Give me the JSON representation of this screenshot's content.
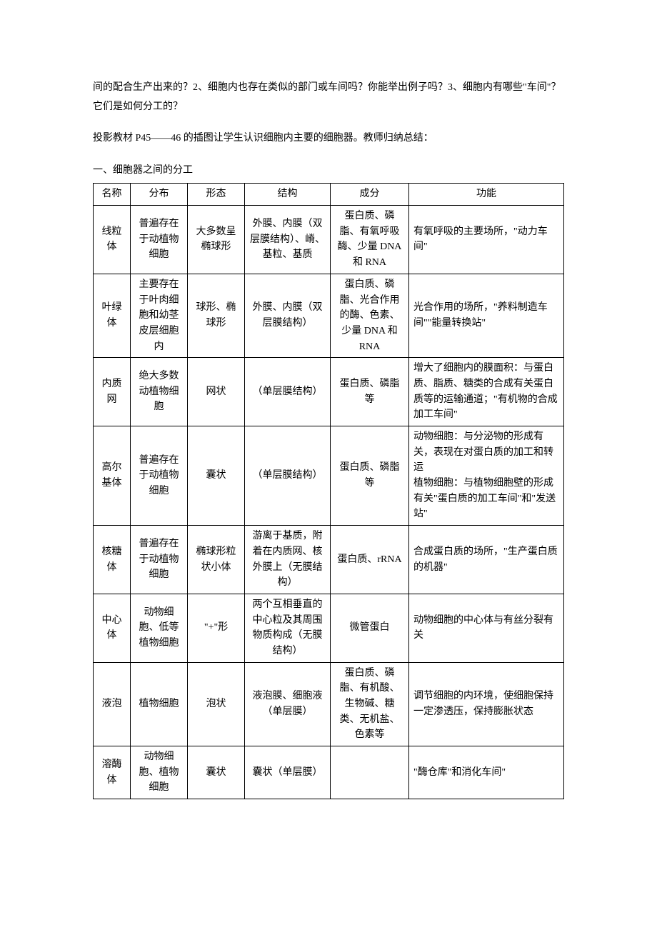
{
  "paragraph1": "间的配合生产出来的？2、细胞内也存在类似的部门或车间吗？你能举出例子吗？3、细胞内有哪些\"车间\"？它们是如何分工的？",
  "paragraph2": "投影教材 P45——46 的插图让学生认识细胞内主要的细胞器。教师归纳总结：",
  "section_title": "一、细胞器之间的分工",
  "table": {
    "headers": [
      "名称",
      "分布",
      "形态",
      "结构",
      "成分",
      "功能"
    ],
    "rows": [
      {
        "name": "线粒体",
        "dist": "普遍存在于动植物细胞",
        "shape": "大多数呈椭球形",
        "struct": "外膜、内膜（双层膜结构）、嵴、基粒、基质",
        "comp": "蛋白质、磷脂、有氧呼吸酶、少量 DNA 和 RNA",
        "func": "有氧呼吸的主要场所，\"动力车间\""
      },
      {
        "name": "叶绿体",
        "dist": "主要存在于叶肉细胞和幼茎皮层细胞内",
        "shape": "球形、椭球形",
        "struct": "外膜、内膜（双层膜结构）",
        "comp": "蛋白质、磷脂、光合作用的酶、色素、少量 DNA 和 RNA",
        "func": "光合作用的场所，\"养料制造车间\"\"能量转换站\""
      },
      {
        "name": "内质网",
        "dist": "绝大多数动植物细胞",
        "shape": "网状",
        "struct": "（单层膜结构）",
        "comp": "蛋白质、磷脂等",
        "func": "增大了细胞内的膜面积：与蛋白质、脂质、糖类的合成有关蛋白质等的运输通道；\"有机物的合成加工车间\""
      },
      {
        "name": "高尔基体",
        "dist": "普遍存在于动植物细胞",
        "shape": "囊状",
        "struct": "（单层膜结构）",
        "comp": "蛋白质、磷脂等",
        "func": "动物细胞：与分泌物的形成有关，表现在对蛋白质的加工和转运\n植物细胞：与植物细胞壁的形成有关\"蛋白质的加工车间\"和\"发送站\""
      },
      {
        "name": "核糖体",
        "dist": "普遍存在于动植物细胞",
        "shape": "椭球形粒状小体",
        "struct": "游离于基质，附着在内质网、核外膜上（无膜结构）",
        "comp": "蛋白质、rRNA",
        "func": "合成蛋白质的场所，\"生产蛋白质的机器\""
      },
      {
        "name": "中心体",
        "dist": "动物细胞、低等植物细胞",
        "shape": "\"+\"形",
        "struct": "两个互相垂直的中心粒及其周围物质构成（无膜结构）",
        "comp": "微管蛋白",
        "func": "动物细胞的中心体与有丝分裂有关"
      },
      {
        "name": "液泡",
        "dist": "植物细胞",
        "shape": "泡状",
        "struct": "液泡膜、细胞液（单层膜）",
        "comp": "蛋白质、磷脂、有机酸、生物碱、糖类、无机盐、色素等",
        "func": "调节细胞的内环境，使细胞保持一定渗透压，保持膨胀状态"
      },
      {
        "name": "溶酶体",
        "dist": "动物细胞、植物细胞",
        "shape": "囊状",
        "struct": "囊状（单层膜）",
        "comp": "",
        "func": "\"酶仓库\"和消化车间\""
      }
    ]
  }
}
